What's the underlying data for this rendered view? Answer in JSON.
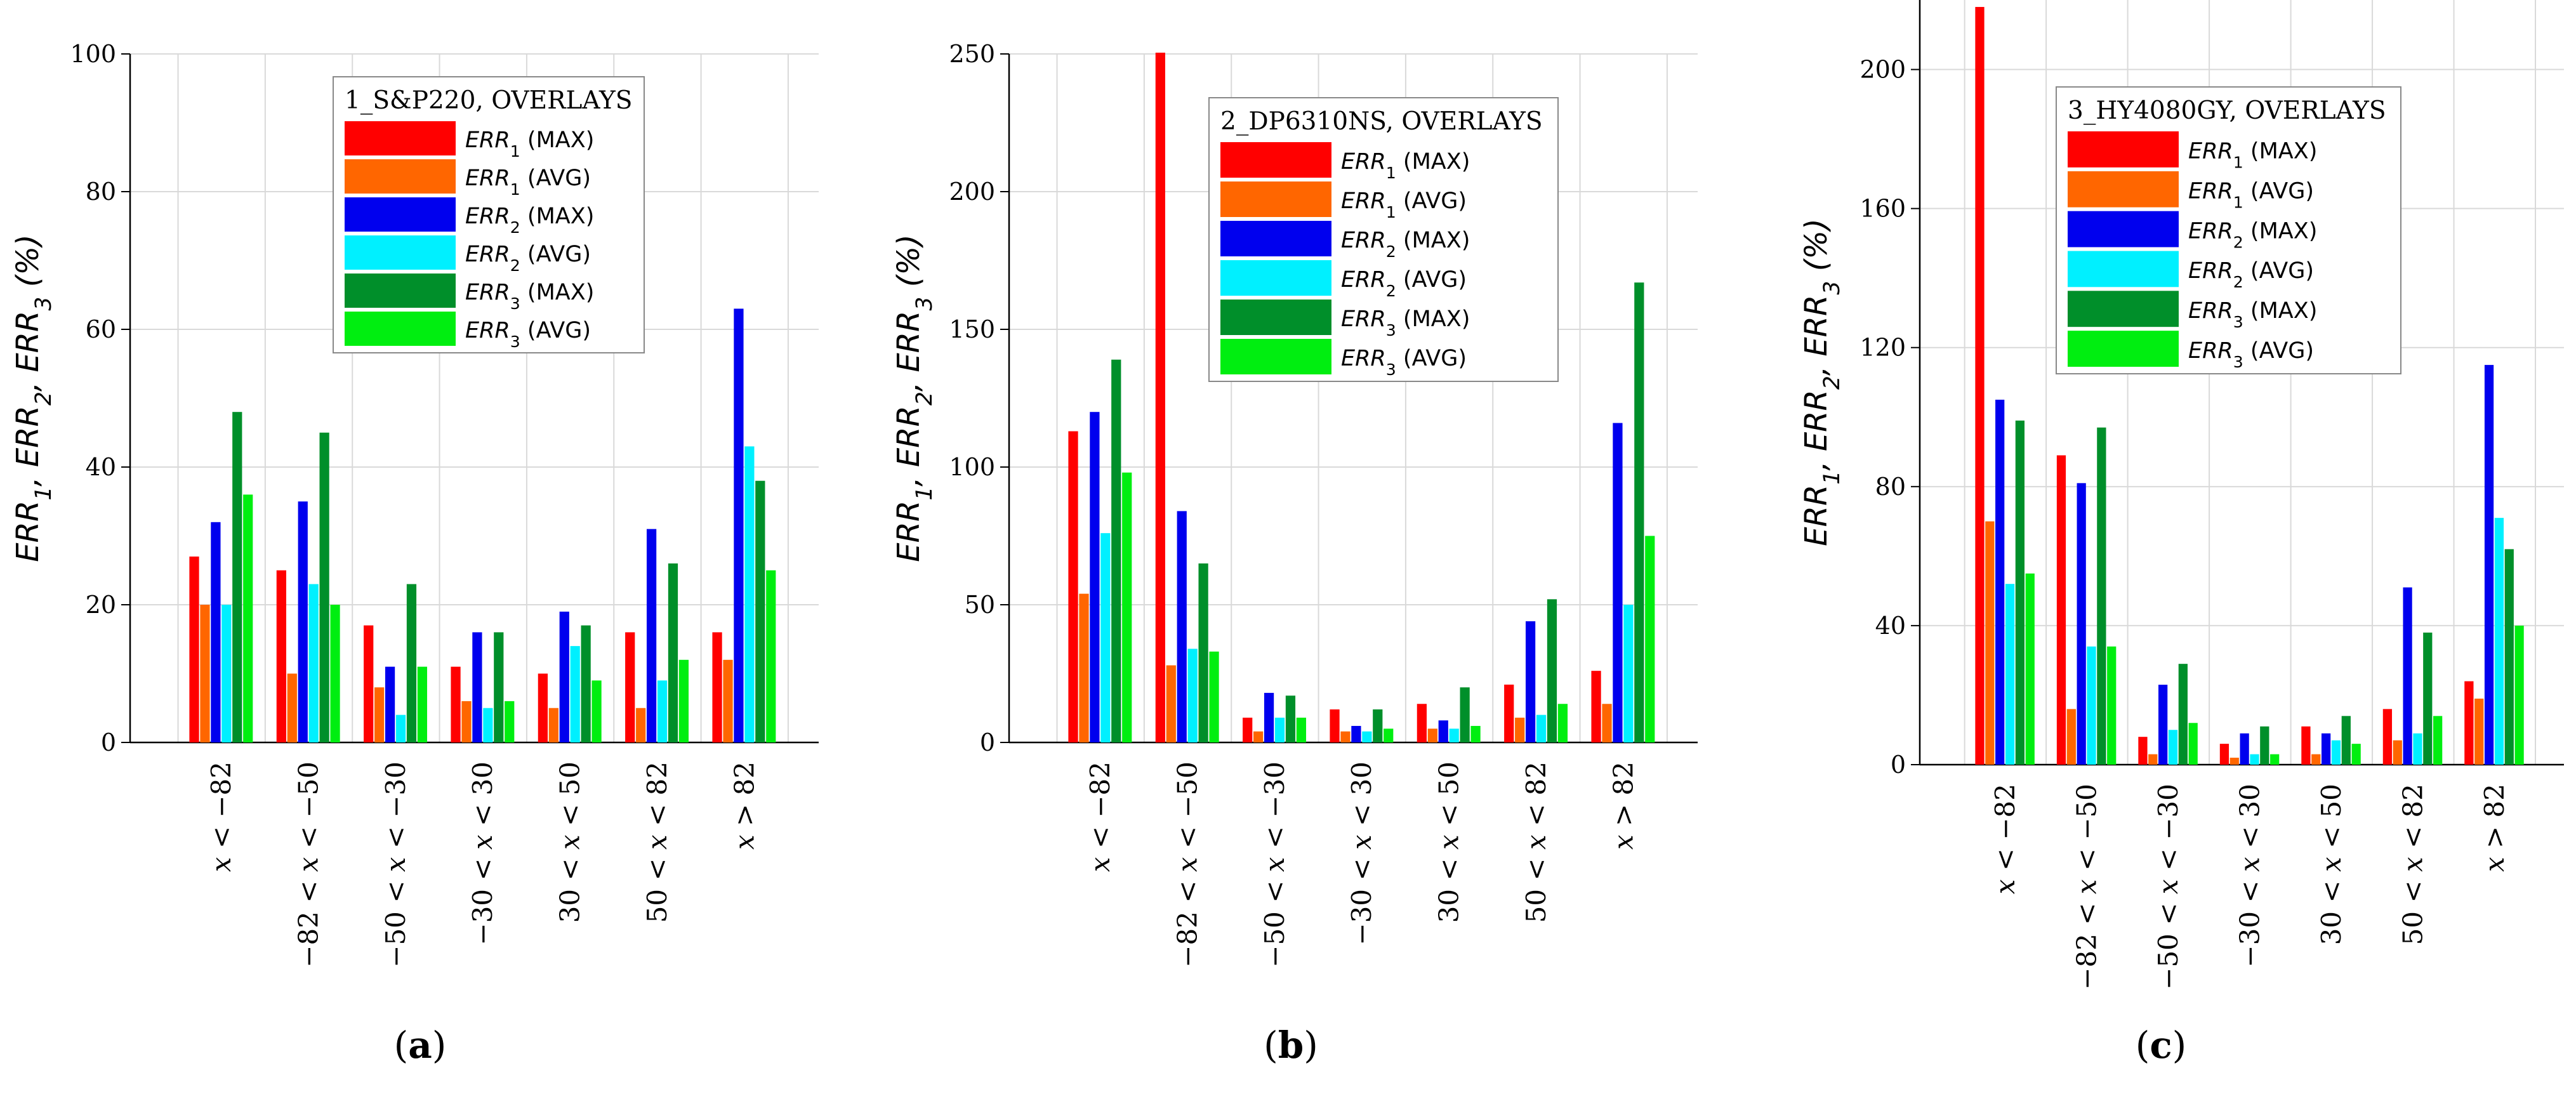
{
  "chart_data": [
    {
      "type": "bar",
      "panel_label": "(a)",
      "legend_title": "1_S&P220, OVERLAYS",
      "ylabel": "ERR1, ERR2, ERR3 (%)",
      "ylim": [
        0,
        100
      ],
      "yticks": [
        "0",
        "20",
        "40",
        "60",
        "80",
        "100"
      ],
      "categories": [
        "x < −82",
        "−82 < x < −50",
        "−50 < x < −30",
        "−30 < x < 30",
        "30 < x < 50",
        "50 < x < 82",
        "x > 82"
      ],
      "series": [
        {
          "name": "ERR1 (MAX)",
          "color": "#ff0000",
          "values": [
            27,
            25,
            17,
            11,
            10,
            16,
            16
          ]
        },
        {
          "name": "ERR1 (AVG)",
          "color": "#ff6600",
          "values": [
            20,
            10,
            8,
            6,
            5,
            5,
            12
          ]
        },
        {
          "name": "ERR2 (MAX)",
          "color": "#0000ee",
          "values": [
            32,
            35,
            11,
            16,
            19,
            31,
            63
          ]
        },
        {
          "name": "ERR2 (AVG)",
          "color": "#00f0ff",
          "values": [
            20,
            23,
            4,
            5,
            14,
            9,
            43
          ]
        },
        {
          "name": "ERR3 (MAX)",
          "color": "#008f2a",
          "values": [
            48,
            45,
            23,
            16,
            17,
            26,
            38
          ]
        },
        {
          "name": "ERR3 (AVG)",
          "color": "#00ee10",
          "values": [
            36,
            20,
            11,
            6,
            9,
            12,
            25
          ]
        }
      ]
    },
    {
      "type": "bar",
      "panel_label": "(b)",
      "legend_title": "2_DP6310NS, OVERLAYS",
      "ylabel": "ERR1, ERR2, ERR3 (%)",
      "ylim": [
        0,
        250
      ],
      "yticks": [
        "0",
        "50",
        "100",
        "150",
        "200",
        "250"
      ],
      "categories": [
        "x < −82",
        "−82 < x < −50",
        "−50 < x < −30",
        "−30 < x < 30",
        "30 < x < 50",
        "50 < x < 82",
        "x > 82"
      ],
      "series": [
        {
          "name": "ERR1 (MAX)",
          "color": "#ff0000",
          "values": [
            113,
            254,
            9,
            12,
            14,
            21,
            26
          ]
        },
        {
          "name": "ERR1 (AVG)",
          "color": "#ff6600",
          "values": [
            54,
            28,
            4,
            4,
            5,
            9,
            14
          ]
        },
        {
          "name": "ERR2 (MAX)",
          "color": "#0000ee",
          "values": [
            120,
            84,
            18,
            6,
            8,
            44,
            116
          ]
        },
        {
          "name": "ERR2 (AVG)",
          "color": "#00f0ff",
          "values": [
            76,
            34,
            9,
            4,
            5,
            10,
            50
          ]
        },
        {
          "name": "ERR3 (MAX)",
          "color": "#008f2a",
          "values": [
            139,
            65,
            17,
            12,
            20,
            52,
            167
          ]
        },
        {
          "name": "ERR3 (AVG)",
          "color": "#00ee10",
          "values": [
            98,
            33,
            9,
            5,
            6,
            14,
            75
          ]
        }
      ]
    },
    {
      "type": "bar",
      "panel_label": "(c)",
      "legend_title": "3_HY4080GY, OVERLAYS",
      "ylabel": "ERR1, ERR2, ERR3 (%)",
      "ylim": [
        0,
        220
      ],
      "yticks": [
        "0",
        "40",
        "80",
        "120",
        "160",
        "200"
      ],
      "categories": [
        "x < −82",
        "−82 < x < −50",
        "−50 < x < −30",
        "−30 < x < 30",
        "30 < x < 50",
        "50 < x < 82",
        "x > 82"
      ],
      "series": [
        {
          "name": "ERR1 (MAX)",
          "color": "#ff0000",
          "values": [
            218,
            89,
            8,
            6,
            11,
            16,
            24
          ]
        },
        {
          "name": "ERR1 (AVG)",
          "color": "#ff6600",
          "values": [
            70,
            16,
            3,
            2,
            3,
            7,
            19
          ]
        },
        {
          "name": "ERR2 (MAX)",
          "color": "#0000ee",
          "values": [
            105,
            81,
            23,
            9,
            9,
            51,
            115
          ]
        },
        {
          "name": "ERR2 (AVG)",
          "color": "#00f0ff",
          "values": [
            52,
            34,
            10,
            3,
            7,
            9,
            71
          ]
        },
        {
          "name": "ERR3 (MAX)",
          "color": "#008f2a",
          "values": [
            99,
            97,
            29,
            11,
            14,
            38,
            62
          ]
        },
        {
          "name": "ERR3 (AVG)",
          "color": "#00ee10",
          "values": [
            55,
            34,
            12,
            3,
            6,
            14,
            40
          ]
        }
      ]
    }
  ]
}
